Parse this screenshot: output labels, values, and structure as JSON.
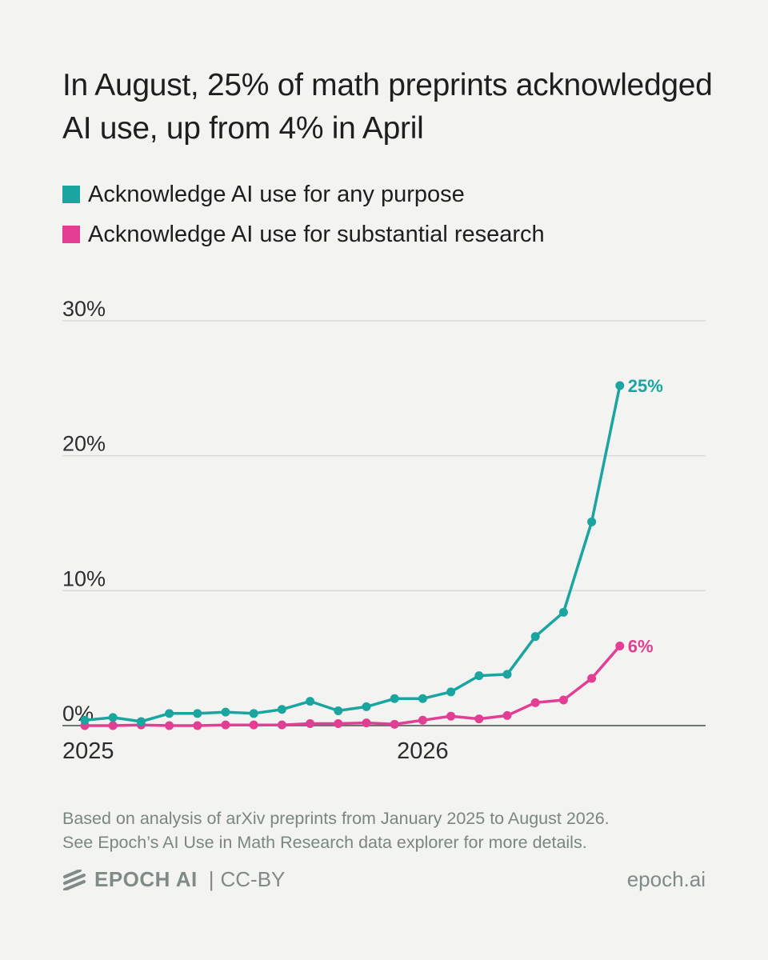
{
  "header": {
    "title": "In August, 25% of math preprints acknowledged AI use, up from 4% in April"
  },
  "legend": [
    {
      "label": "Acknowledge AI use for any purpose",
      "color": "#1aa5a0"
    },
    {
      "label": "Acknowledge AI use for substantial research",
      "color": "#e23e93"
    }
  ],
  "chart_data": {
    "type": "line",
    "title": "In August, 25% of math preprints acknowledged AI use, up from 4% in April",
    "xlabel": "",
    "ylabel": "",
    "x_tick_labels": [
      "2025",
      "2026"
    ],
    "y_tick_labels": [
      "0%",
      "10%",
      "20%",
      "30%"
    ],
    "y_ticks": [
      0,
      10,
      20,
      30
    ],
    "ylim": [
      0,
      30
    ],
    "grid": true,
    "legend_position": "top",
    "x": [
      "2025-01",
      "2025-02",
      "2025-03",
      "2025-04",
      "2025-05",
      "2025-06",
      "2025-07",
      "2025-08",
      "2025-09",
      "2025-10",
      "2025-11",
      "2025-12",
      "2026-01",
      "2026-02",
      "2026-03",
      "2026-04",
      "2026-05",
      "2026-06",
      "2026-07",
      "2026-08"
    ],
    "series": [
      {
        "name": "Acknowledge AI use for any purpose",
        "color": "#1aa5a0",
        "values": [
          0.4,
          0.6,
          0.3,
          0.9,
          0.9,
          1.0,
          0.9,
          1.2,
          1.8,
          1.1,
          1.4,
          2.0,
          2.0,
          2.5,
          3.7,
          3.8,
          6.6,
          8.4,
          15.1,
          25.2
        ],
        "end_label": "25%"
      },
      {
        "name": "Acknowledge AI use for substantial research",
        "color": "#e23e93",
        "values": [
          0.0,
          0.0,
          0.05,
          0.0,
          0.0,
          0.05,
          0.05,
          0.05,
          0.15,
          0.15,
          0.2,
          0.1,
          0.4,
          0.7,
          0.5,
          0.75,
          1.7,
          1.9,
          3.5,
          5.9
        ],
        "end_label": "6%"
      }
    ]
  },
  "footnote": {
    "line1": "Based on analysis of arXiv preprints from January 2025 to August 2026.",
    "line2": "See Epoch’s AI Use in Math Research data explorer for more details."
  },
  "footer": {
    "brand": "EPOCH AI",
    "separator": "|",
    "license": "CC-BY",
    "url": "epoch.ai"
  }
}
